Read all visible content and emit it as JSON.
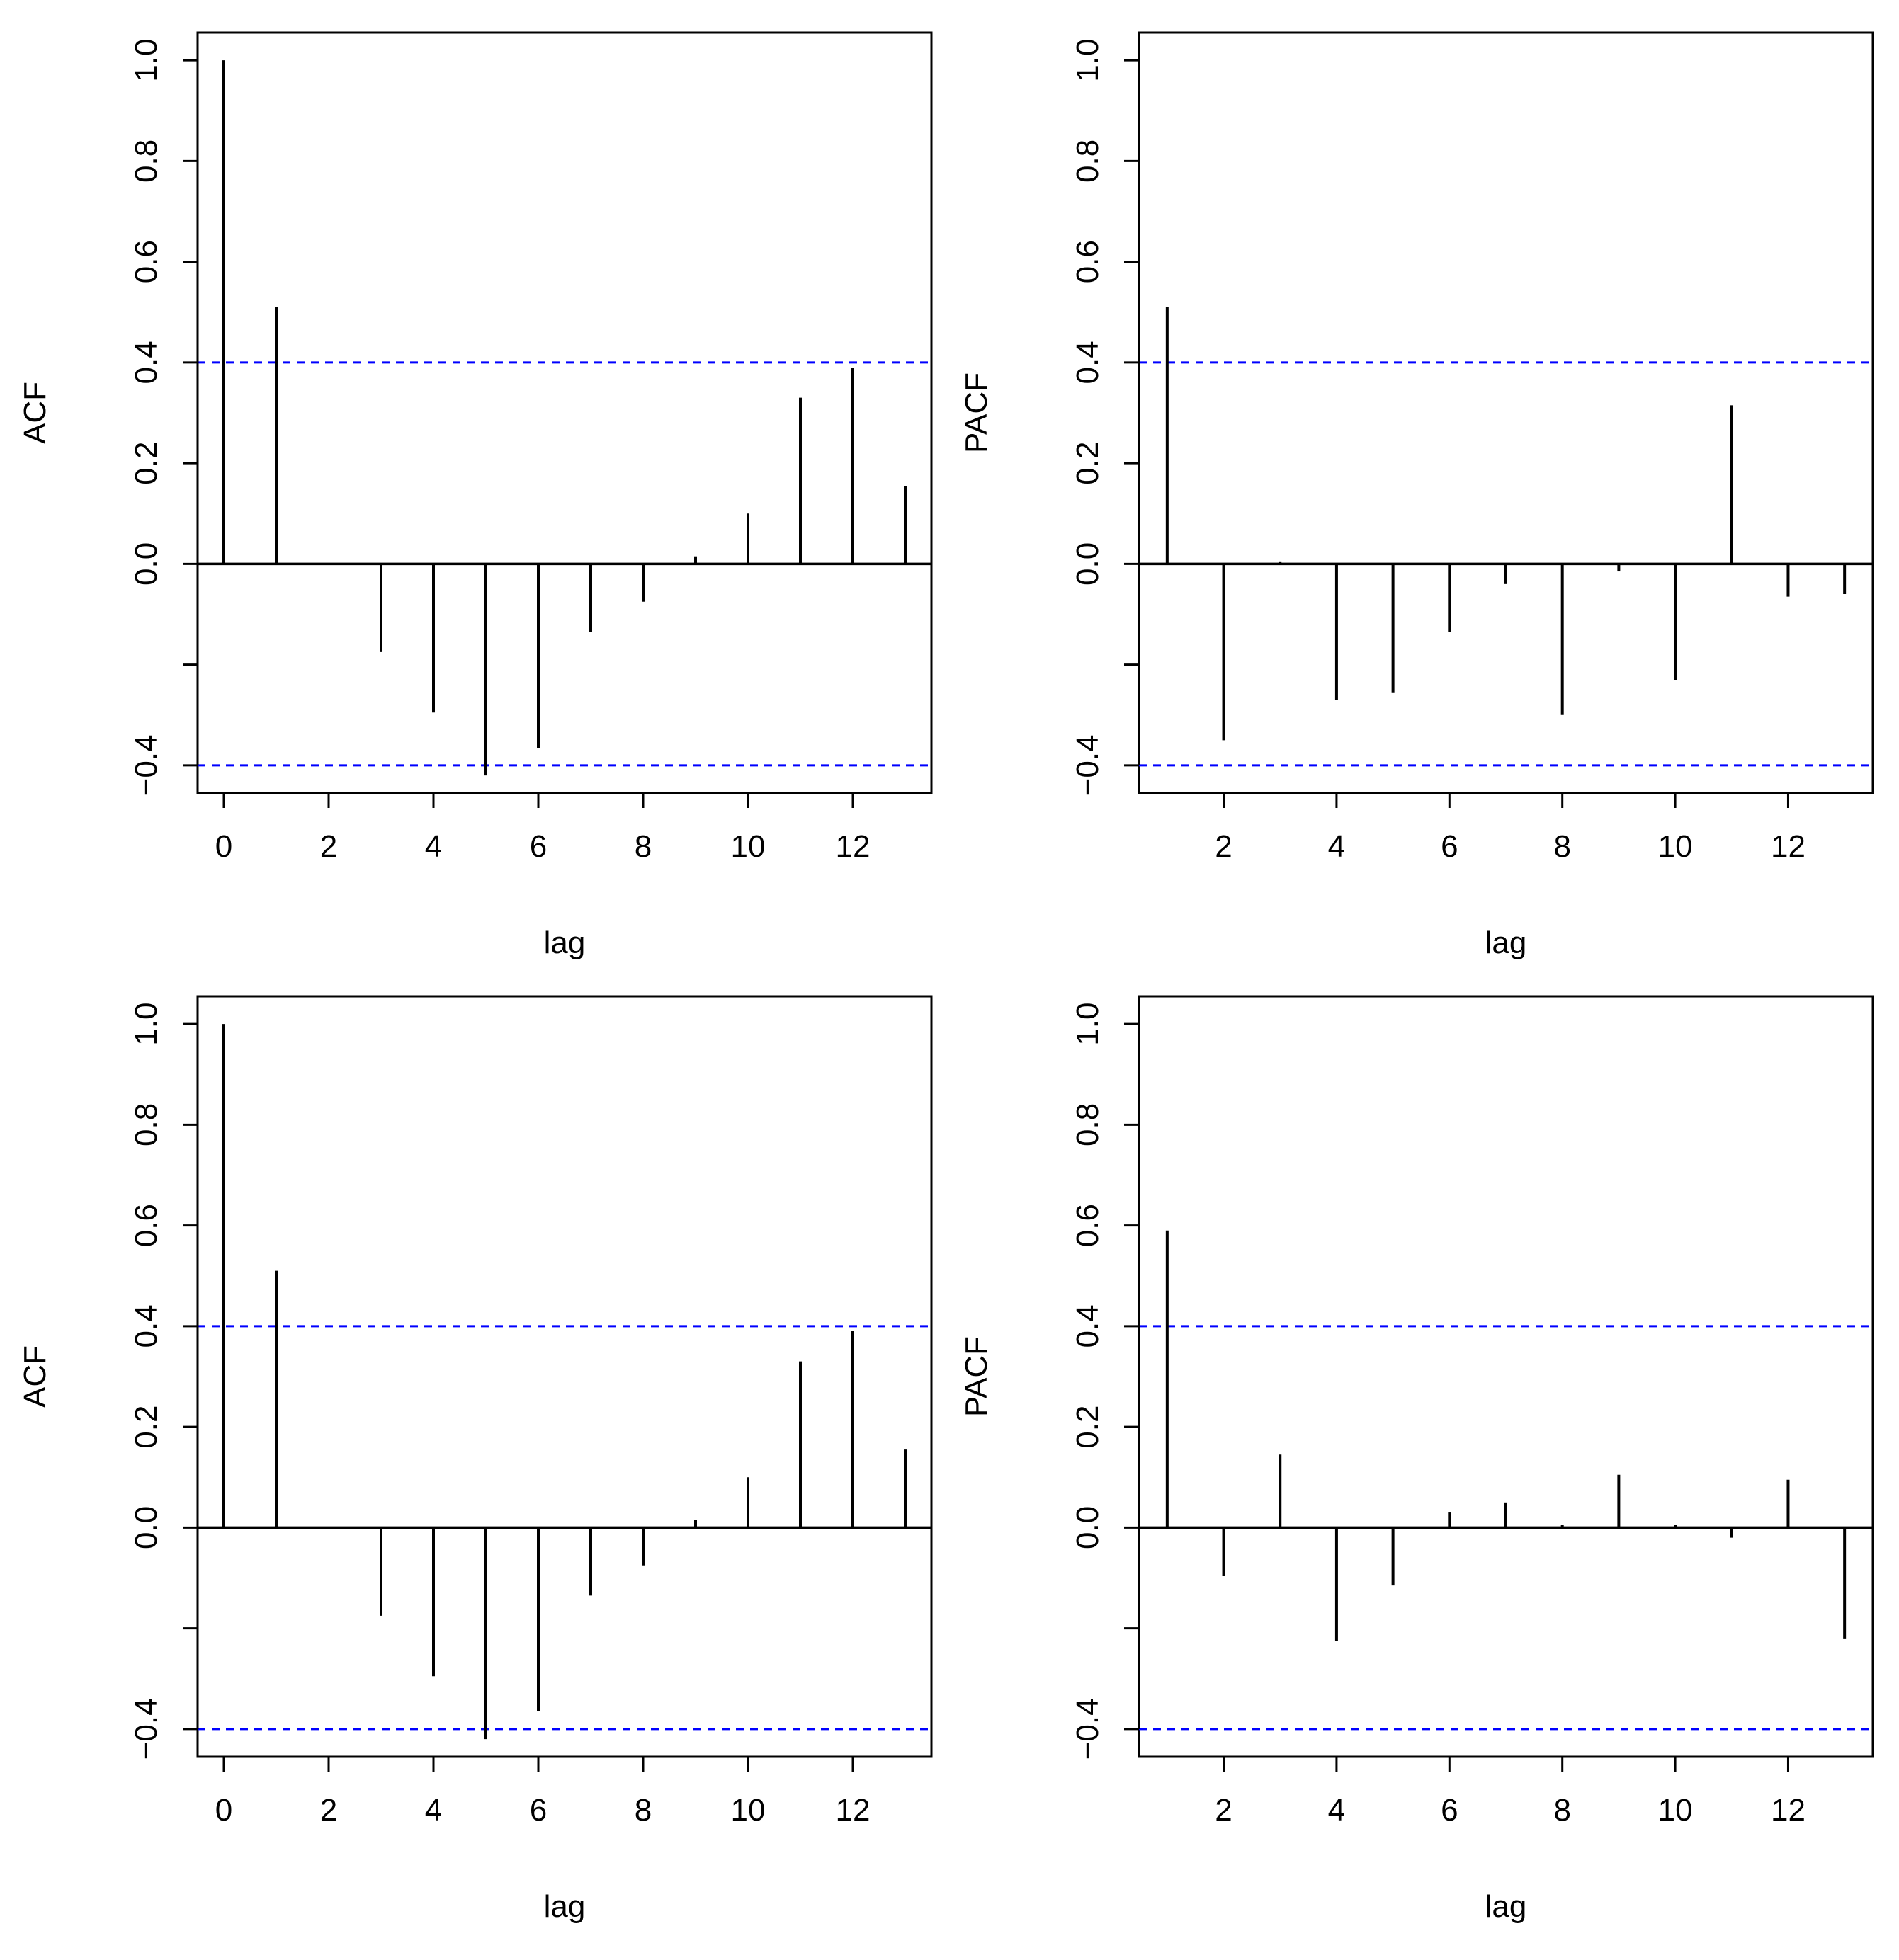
{
  "colors": {
    "spike": "#000000",
    "confidence": "#0000ff"
  },
  "chart_data": [
    {
      "type": "bar",
      "kind": "ACF",
      "position": "top-left",
      "ylabel": "ACF",
      "xlabel": "lag",
      "xlim": [
        -0.5,
        13.5
      ],
      "ylim": [
        -0.455,
        1.055
      ],
      "x_ticks": [
        0,
        2,
        4,
        6,
        8,
        10,
        12
      ],
      "y_ticks": [
        {
          "value": -0.4,
          "label": "−0.4"
        },
        {
          "value": -0.2,
          "label": ""
        },
        {
          "value": 0.0,
          "label": "0.0"
        },
        {
          "value": 0.2,
          "label": "0.2"
        },
        {
          "value": 0.4,
          "label": "0.4"
        },
        {
          "value": 0.6,
          "label": "0.6"
        },
        {
          "value": 0.8,
          "label": "0.8"
        },
        {
          "value": 1.0,
          "label": "1.0"
        }
      ],
      "confidence_bounds": [
        0.4,
        -0.4
      ],
      "x": [
        0,
        1,
        2,
        3,
        4,
        5,
        6,
        7,
        8,
        9,
        10,
        11,
        12,
        13
      ],
      "values": [
        1.0,
        0.51,
        0.0,
        -0.175,
        -0.295,
        -0.42,
        -0.365,
        -0.135,
        -0.075,
        0.015,
        0.1,
        0.33,
        0.39,
        0.155
      ]
    },
    {
      "type": "bar",
      "kind": "PACF",
      "position": "top-right",
      "ylabel": "PACF",
      "xlabel": "lag",
      "xlim": [
        0.5,
        13.5
      ],
      "ylim": [
        -0.455,
        1.055
      ],
      "x_ticks": [
        2,
        4,
        6,
        8,
        10,
        12
      ],
      "y_ticks": [
        {
          "value": -0.4,
          "label": "−0.4"
        },
        {
          "value": -0.2,
          "label": ""
        },
        {
          "value": 0.0,
          "label": "0.0"
        },
        {
          "value": 0.2,
          "label": "0.2"
        },
        {
          "value": 0.4,
          "label": "0.4"
        },
        {
          "value": 0.6,
          "label": "0.6"
        },
        {
          "value": 0.8,
          "label": "0.8"
        },
        {
          "value": 1.0,
          "label": "1.0"
        }
      ],
      "confidence_bounds": [
        0.4,
        -0.4
      ],
      "x": [
        1,
        2,
        3,
        4,
        5,
        6,
        7,
        8,
        9,
        10,
        11,
        12,
        13
      ],
      "values": [
        0.51,
        -0.35,
        0.005,
        -0.27,
        -0.255,
        -0.135,
        -0.04,
        -0.3,
        -0.015,
        -0.23,
        0.315,
        -0.065,
        -0.06
      ]
    },
    {
      "type": "bar",
      "kind": "ACF",
      "position": "bottom-left",
      "ylabel": "ACF",
      "xlabel": "lag",
      "xlim": [
        -0.5,
        13.5
      ],
      "ylim": [
        -0.455,
        1.055
      ],
      "x_ticks": [
        0,
        2,
        4,
        6,
        8,
        10,
        12
      ],
      "y_ticks": [
        {
          "value": -0.4,
          "label": "−0.4"
        },
        {
          "value": -0.2,
          "label": ""
        },
        {
          "value": 0.0,
          "label": "0.0"
        },
        {
          "value": 0.2,
          "label": "0.2"
        },
        {
          "value": 0.4,
          "label": "0.4"
        },
        {
          "value": 0.6,
          "label": "0.6"
        },
        {
          "value": 0.8,
          "label": "0.8"
        },
        {
          "value": 1.0,
          "label": "1.0"
        }
      ],
      "confidence_bounds": [
        0.4,
        -0.4
      ],
      "x": [
        0,
        1,
        2,
        3,
        4,
        5,
        6,
        7,
        8,
        9,
        10,
        11,
        12,
        13
      ],
      "values": [
        1.0,
        0.51,
        0.0,
        -0.175,
        -0.295,
        -0.42,
        -0.365,
        -0.135,
        -0.075,
        0.015,
        0.1,
        0.33,
        0.39,
        0.155
      ]
    },
    {
      "type": "bar",
      "kind": "PACF",
      "position": "bottom-right",
      "ylabel": "PACF",
      "xlabel": "lag",
      "xlim": [
        0.5,
        13.5
      ],
      "ylim": [
        -0.455,
        1.055
      ],
      "x_ticks": [
        2,
        4,
        6,
        8,
        10,
        12
      ],
      "y_ticks": [
        {
          "value": -0.4,
          "label": "−0.4"
        },
        {
          "value": -0.2,
          "label": ""
        },
        {
          "value": 0.0,
          "label": "0.0"
        },
        {
          "value": 0.2,
          "label": "0.2"
        },
        {
          "value": 0.4,
          "label": "0.4"
        },
        {
          "value": 0.6,
          "label": "0.6"
        },
        {
          "value": 0.8,
          "label": "0.8"
        },
        {
          "value": 1.0,
          "label": "1.0"
        }
      ],
      "confidence_bounds": [
        0.4,
        -0.4
      ],
      "x": [
        1,
        2,
        3,
        4,
        5,
        6,
        7,
        8,
        9,
        10,
        11,
        12,
        13
      ],
      "values": [
        0.59,
        -0.095,
        0.145,
        -0.225,
        -0.115,
        0.03,
        0.05,
        0.005,
        0.105,
        0.005,
        -0.02,
        0.095,
        -0.22
      ]
    }
  ]
}
